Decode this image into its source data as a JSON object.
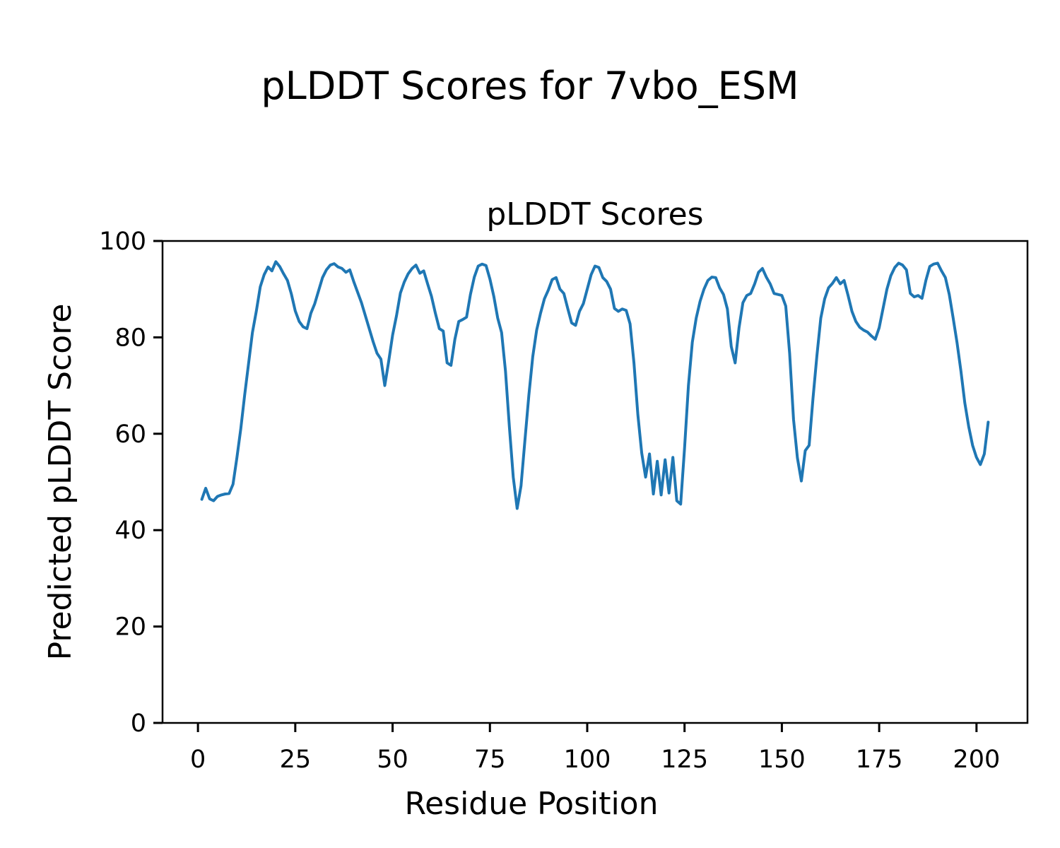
{
  "figure": {
    "suptitle": "pLDDT Scores for 7vbo_ESM",
    "background_color": "#ffffff",
    "text_color": "#000000"
  },
  "chart_data": {
    "type": "line",
    "title": "pLDDT Scores",
    "xlabel": "Residue Position",
    "ylabel": "Predicted pLDDT Score",
    "grid": false,
    "legend": null,
    "xlim": [
      -9.1,
      213.1
    ],
    "ylim": [
      0,
      100
    ],
    "xticks": [
      0,
      25,
      50,
      75,
      100,
      125,
      150,
      175,
      200
    ],
    "yticks": [
      0,
      20,
      40,
      60,
      80,
      100
    ],
    "series": [
      {
        "name": "pLDDT",
        "color": "#1f77b4",
        "linewidth": 4,
        "x_start": 1,
        "x_step": 1,
        "y": [
          46.4,
          48.7,
          46.5,
          46.1,
          47.0,
          47.3,
          47.5,
          47.6,
          49.5,
          55.0,
          61.0,
          68.0,
          74.5,
          81.0,
          85.5,
          90.5,
          93.0,
          94.6,
          93.8,
          95.7,
          94.7,
          93.2,
          91.8,
          89.0,
          85.5,
          83.3,
          82.2,
          81.8,
          85.0,
          87.0,
          89.7,
          92.4,
          94.0,
          95.0,
          95.3,
          94.6,
          94.3,
          93.5,
          94.0,
          91.6,
          89.4,
          87.2,
          84.5,
          81.8,
          79.1,
          76.7,
          75.5,
          70.0,
          75.0,
          80.5,
          84.5,
          89.2,
          91.5,
          93.2,
          94.3,
          95.0,
          93.3,
          93.8,
          91.1,
          88.5,
          85.0,
          81.8,
          81.3,
          74.7,
          74.2,
          79.6,
          83.3,
          83.7,
          84.2,
          88.9,
          92.5,
          94.8,
          95.2,
          94.9,
          92.1,
          88.5,
          84.0,
          81.0,
          73.0,
          61.5,
          51.0,
          44.5,
          49.2,
          58.6,
          68.0,
          76.0,
          81.5,
          85.0,
          88.0,
          89.8,
          92.0,
          92.4,
          90.0,
          89.1,
          86.0,
          83.0,
          82.5,
          85.4,
          87.0,
          90.0,
          93.0,
          94.8,
          94.5,
          92.4,
          91.6,
          90.0,
          86.0,
          85.4,
          85.9,
          85.6,
          82.8,
          74.7,
          64.0,
          56.0,
          51.0,
          55.8,
          47.5,
          54.3,
          47.3,
          54.6,
          47.7,
          55.1,
          46.1,
          45.4,
          57.0,
          70.0,
          79.0,
          84.0,
          87.5,
          90.0,
          91.8,
          92.5,
          92.4,
          90.3,
          88.9,
          85.9,
          78.1,
          74.7,
          82.0,
          87.2,
          88.7,
          89.1,
          91.1,
          93.5,
          94.3,
          92.5,
          91.1,
          89.1,
          88.9,
          88.7,
          86.5,
          76.7,
          63.0,
          55.0,
          50.2,
          56.5,
          57.6,
          67.4,
          76.2,
          84.0,
          88.0,
          90.3,
          91.2,
          92.4,
          91.1,
          91.8,
          88.7,
          85.4,
          83.3,
          82.1,
          81.5,
          81.1,
          80.3,
          79.6,
          82.0,
          86.0,
          90.0,
          92.8,
          94.5,
          95.4,
          95.0,
          94.0,
          89.1,
          88.4,
          88.7,
          88.1,
          91.8,
          94.7,
          95.2,
          95.4,
          93.8,
          92.4,
          88.9,
          84.0,
          78.9,
          73.0,
          66.4,
          61.5,
          57.6,
          55.1,
          53.6,
          55.8,
          62.4
        ]
      }
    ]
  }
}
